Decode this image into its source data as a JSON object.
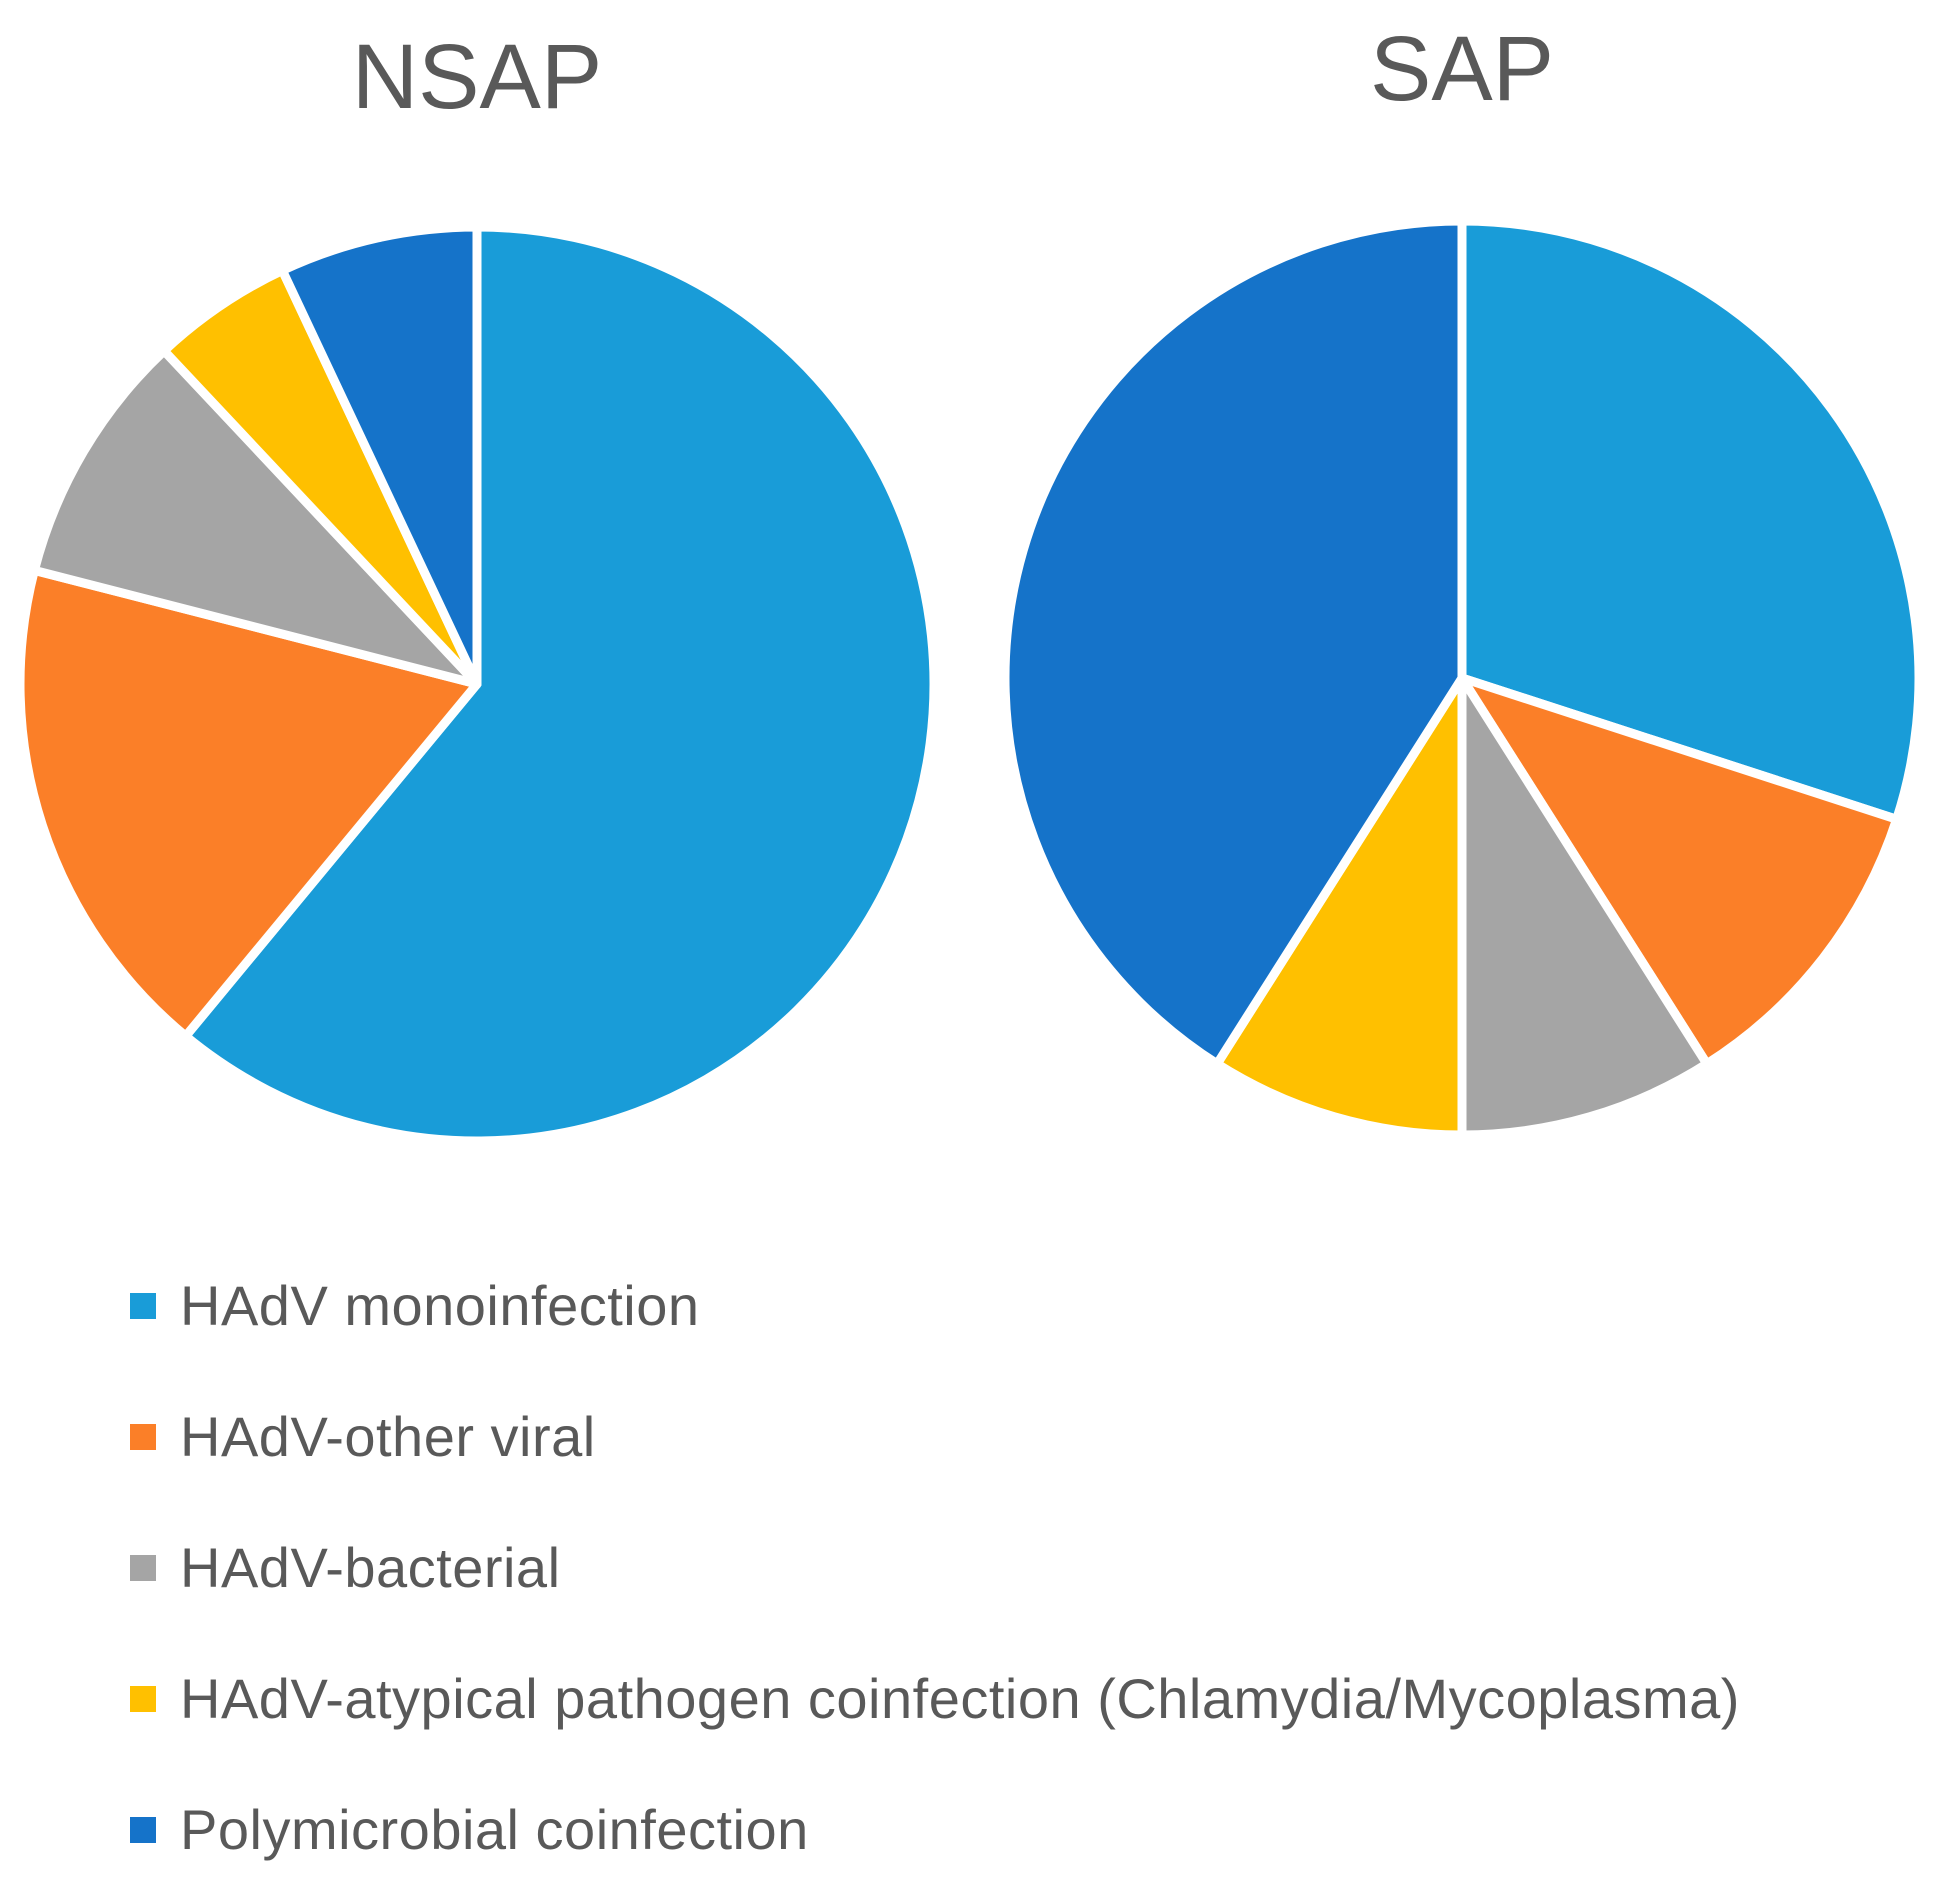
{
  "chart_data": [
    {
      "type": "pie",
      "title": "NSAP",
      "slices": [
        {
          "label": "HAdV monoinfection",
          "value": 61,
          "color": "#199CD8"
        },
        {
          "label": "HAdV-other viral",
          "value": 18,
          "color": "#FB7F28"
        },
        {
          "label": "HAdV-bacterial",
          "value": 9,
          "color": "#A5A5A5"
        },
        {
          "label": "HAdV-atypical pathogen coinfection (Chlamydia/Mycoplasma)",
          "value": 5,
          "color": "#FFC000"
        },
        {
          "label": "Polymicrobial coinfection",
          "value": 7,
          "color": "#1573C9"
        }
      ]
    },
    {
      "type": "pie",
      "title": "SAP",
      "slices": [
        {
          "label": "HAdV monoinfection",
          "value": 30,
          "color": "#199CD8"
        },
        {
          "label": "HAdV-other viral",
          "value": 11,
          "color": "#FB7F28"
        },
        {
          "label": "HAdV-bacterial",
          "value": 9,
          "color": "#A5A5A5"
        },
        {
          "label": "HAdV-atypical pathogen coinfection (Chlamydia/Mycoplasma)",
          "value": 9,
          "color": "#FFC000"
        },
        {
          "label": "Polymicrobial coinfection",
          "value": 41,
          "color": "#1573C9"
        }
      ]
    }
  ],
  "legend": {
    "position": "bottom-left",
    "items": [
      {
        "label": "HAdV monoinfection",
        "color": "#199CD8"
      },
      {
        "label": "HAdV-other viral",
        "color": "#FB7F28"
      },
      {
        "label": "HAdV-bacterial",
        "color": "#A5A5A5"
      },
      {
        "label": "HAdV-atypical pathogen coinfection (Chlamydia/Mycoplasma)",
        "color": "#FFC000"
      },
      {
        "label": "Polymicrobial coinfection",
        "color": "#1573C9"
      }
    ]
  }
}
